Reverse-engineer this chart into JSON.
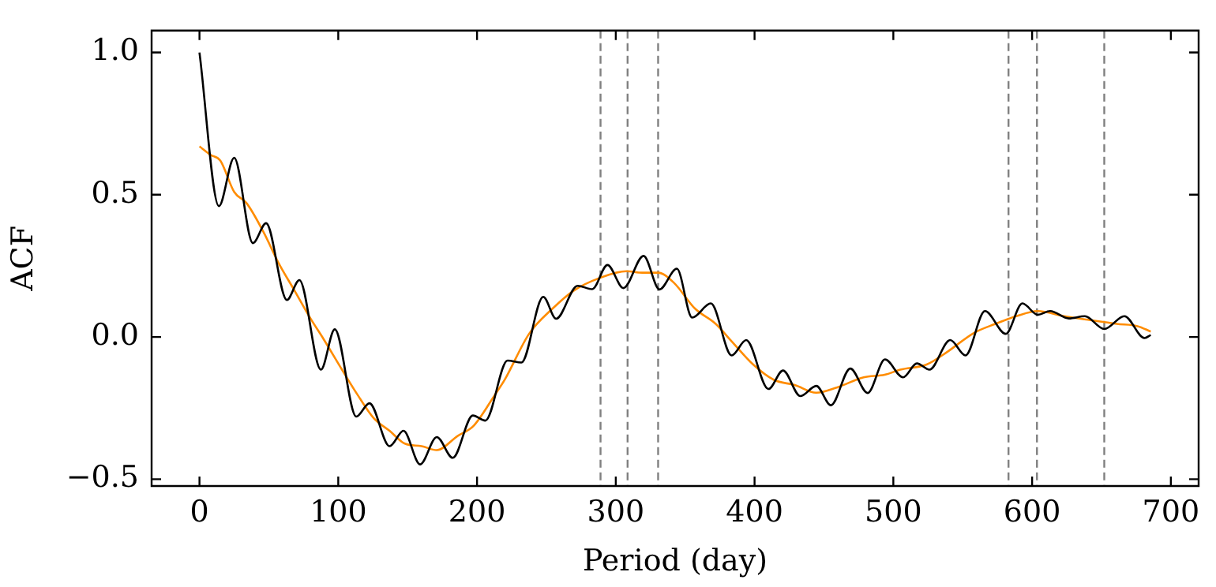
{
  "chart_data": {
    "type": "line",
    "xlabel": "Period (day)",
    "ylabel": "ACF",
    "xlim": [
      -34.5,
      720
    ],
    "xticks": [
      0,
      100,
      200,
      300,
      400,
      500,
      600,
      700
    ],
    "ylim": [
      -0.524,
      1.077
    ],
    "yticks": [
      {
        "value": -0.5,
        "label": "−0.5"
      },
      {
        "value": 0,
        "label": "0.0"
      },
      {
        "value": 0.5,
        "label": "0.5"
      },
      {
        "value": 1,
        "label": "1.0"
      }
    ],
    "grid": false,
    "legend": false,
    "marker": "none",
    "line_style": "solid",
    "series": [
      {
        "color": "#000000",
        "x": [
          0,
          14,
          25,
          38.5,
          48,
          63,
          72,
          87.5,
          97.5,
          113,
          122.5,
          137,
          147,
          159,
          171,
          182.5,
          197,
          206,
          222,
          232,
          247.7,
          257,
          272.5,
          283,
          294,
          305.5,
          320,
          331.5,
          344,
          355,
          368.5,
          383.5,
          394,
          410,
          420.5,
          433,
          444.5,
          455,
          469,
          481.5,
          494,
          507,
          517,
          526,
          541,
          552,
          566,
          581,
          593,
          604,
          613,
          626.5,
          638,
          652,
          666.5,
          681,
          685.5
        ],
        "values": [
          1.0,
          0.46,
          0.63,
          0.33,
          0.4,
          0.13,
          0.2,
          -0.115,
          0.027,
          -0.28,
          -0.233,
          -0.384,
          -0.33,
          -0.448,
          -0.352,
          -0.425,
          -0.276,
          -0.294,
          -0.083,
          -0.09,
          0.141,
          0.064,
          0.18,
          0.168,
          0.253,
          0.172,
          0.285,
          0.167,
          0.24,
          0.068,
          0.118,
          -0.065,
          -0.011,
          -0.183,
          -0.118,
          -0.208,
          -0.172,
          -0.24,
          -0.111,
          -0.197,
          -0.079,
          -0.142,
          -0.093,
          -0.115,
          -0.011,
          -0.065,
          0.091,
          0.011,
          0.118,
          0.078,
          0.091,
          0.065,
          0.073,
          0.028,
          0.073,
          -0.004,
          0.007
        ]
      },
      {
        "color": "#ff8c00",
        "x": [
          0,
          8,
          15,
          25,
          34,
          46,
          57,
          68.5,
          80,
          89.5,
          102.7,
          114,
          125.5,
          137,
          148,
          160,
          171,
          186,
          197.6,
          212.8,
          220,
          237.5,
          254.5,
          269.7,
          288.7,
          307.7,
          319,
          330.5,
          342,
          357,
          372,
          383.6,
          399,
          414,
          429,
          444.4,
          459.6,
          478.6,
          493.7,
          505,
          524,
          539,
          558,
          573.5,
          588.6,
          604,
          623,
          642,
          661,
          676,
          685.5
        ],
        "values": [
          0.67,
          0.64,
          0.62,
          0.51,
          0.47,
          0.37,
          0.26,
          0.163,
          0.065,
          -0.008,
          -0.115,
          -0.204,
          -0.285,
          -0.33,
          -0.375,
          -0.384,
          -0.398,
          -0.348,
          -0.312,
          -0.204,
          -0.15,
          0.011,
          0.1,
          0.163,
          0.208,
          0.231,
          0.226,
          0.226,
          0.19,
          0.1,
          0.046,
          -0.016,
          -0.097,
          -0.151,
          -0.169,
          -0.196,
          -0.177,
          -0.142,
          -0.133,
          -0.115,
          -0.097,
          -0.052,
          0.014,
          0.046,
          0.073,
          0.091,
          0.073,
          0.059,
          0.046,
          0.038,
          0.019
        ]
      }
    ],
    "ref_lines": [
      {
        "axis": "x",
        "value": 289,
        "color": "#808080",
        "line_style": "dashed"
      },
      {
        "axis": "x",
        "value": 308.5,
        "color": "#808080",
        "line_style": "dashed"
      },
      {
        "axis": "x",
        "value": 330.5,
        "color": "#808080",
        "line_style": "dashed"
      },
      {
        "axis": "x",
        "value": 583,
        "color": "#808080",
        "line_style": "dashed"
      },
      {
        "axis": "x",
        "value": 603.5,
        "color": "#808080",
        "line_style": "dashed"
      },
      {
        "axis": "x",
        "value": 652,
        "color": "#808080",
        "line_style": "dashed"
      }
    ]
  }
}
